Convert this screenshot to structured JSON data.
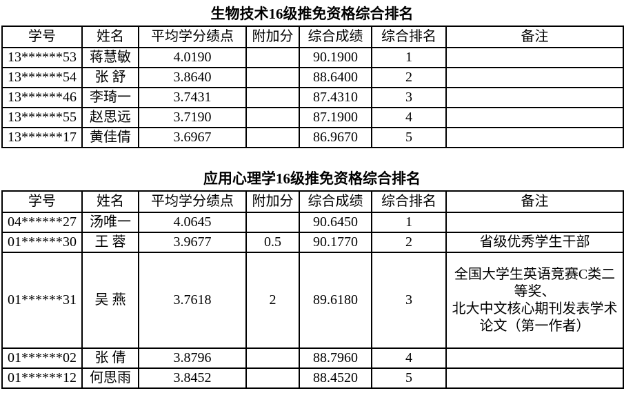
{
  "page": {
    "background": "#ffffff",
    "text_color": "#000000",
    "border_color": "#000000"
  },
  "column_keys": [
    "student-id",
    "name",
    "gpa",
    "bonus",
    "score",
    "rank",
    "remark"
  ],
  "tables": [
    {
      "title": "生物技术16级推免资格综合排名",
      "columns": [
        "学号",
        "姓名",
        "平均学分绩点",
        "附加分",
        "综合成绩",
        "综合排名",
        "备注"
      ],
      "rows": [
        [
          "13******53",
          "蒋慧敏",
          "4.0190",
          "",
          "90.1900",
          "1",
          ""
        ],
        [
          "13******54",
          "张 舒",
          "3.8640",
          "",
          "88.6400",
          "2",
          ""
        ],
        [
          "13******46",
          "李琦一",
          "3.7431",
          "",
          "87.4310",
          "3",
          ""
        ],
        [
          "13******55",
          "赵思远",
          "3.7190",
          "",
          "87.1900",
          "4",
          ""
        ],
        [
          "13******17",
          "黄佳倩",
          "3.6967",
          "",
          "86.9670",
          "5",
          ""
        ]
      ]
    },
    {
      "title": "应用心理学16级推免资格综合排名",
      "columns": [
        "学号",
        "姓名",
        "平均学分绩点",
        "附加分",
        "综合成绩",
        "综合排名",
        "备注"
      ],
      "rows": [
        [
          "04******27",
          "汤唯一",
          "4.0645",
          "",
          "90.6450",
          "1",
          ""
        ],
        [
          "01******30",
          "王 蓉",
          "3.9677",
          "0.5",
          "90.1770",
          "2",
          "省级优秀学生干部"
        ],
        [
          "01******31",
          "吴 燕",
          "3.7618",
          "2",
          "89.6180",
          "3",
          "全国大学生英语竞赛C类二等奖、\n北大中文核心期刊发表学术论文（第一作者）"
        ],
        [
          "01******02",
          "张 倩",
          "3.8796",
          "",
          "88.7960",
          "4",
          ""
        ],
        [
          "01******12",
          "何思雨",
          "3.8452",
          "",
          "88.4520",
          "5",
          ""
        ]
      ]
    }
  ]
}
